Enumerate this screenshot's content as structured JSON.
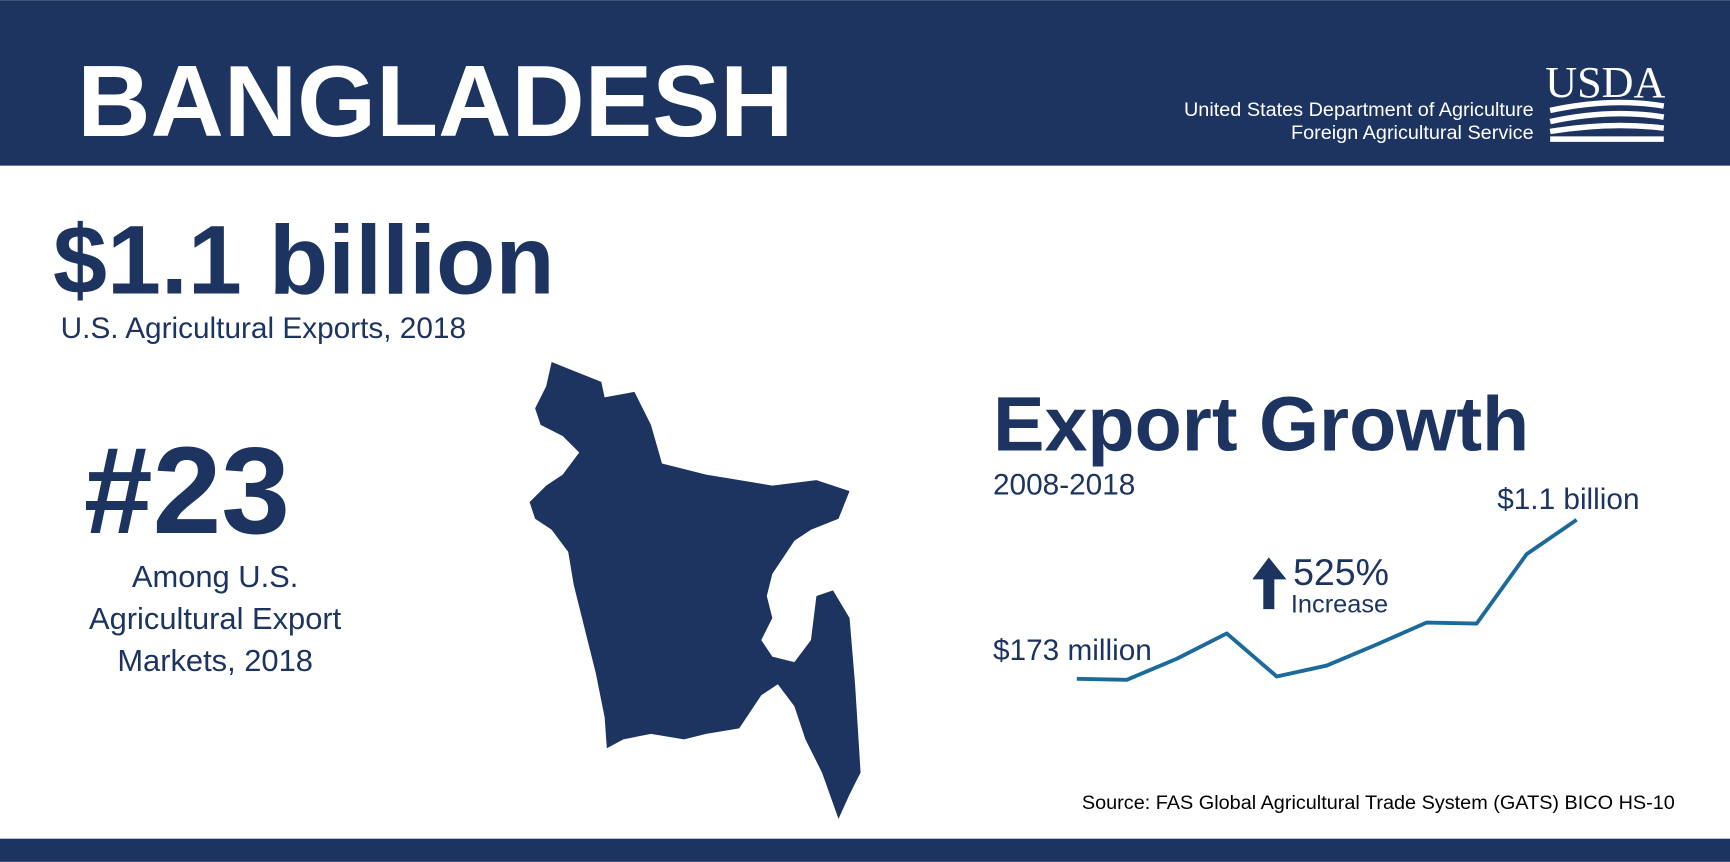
{
  "header": {
    "title": "BANGLADESH",
    "agency_lines": [
      "United States Department of Agriculture",
      "Foreign Agricultural Service"
    ],
    "logo": "USDA"
  },
  "exports": {
    "value": "$1.1 billion",
    "caption": "U.S. Agricultural Exports, 2018"
  },
  "rank": {
    "value": "#23",
    "caption_lines": [
      "Among U.S.",
      "Agricultural Export",
      "Markets, 2018"
    ]
  },
  "chart_data": {
    "type": "line",
    "title": "Export Growth",
    "subtitle": "2008-2018",
    "values": [
      173,
      167,
      290,
      437,
      186,
      250,
      373,
      501,
      495,
      900,
      1100
    ],
    "value_labels": [
      "$173 million",
      null,
      null,
      null,
      null,
      null,
      null,
      null,
      null,
      null,
      "$1.1 billion"
    ],
    "color": "#1c6a9c",
    "annotation": {
      "value": "525%",
      "label": "Increase"
    }
  },
  "source": "Source: FAS Global Agricultural Trade System (GATS) BICO HS-10"
}
